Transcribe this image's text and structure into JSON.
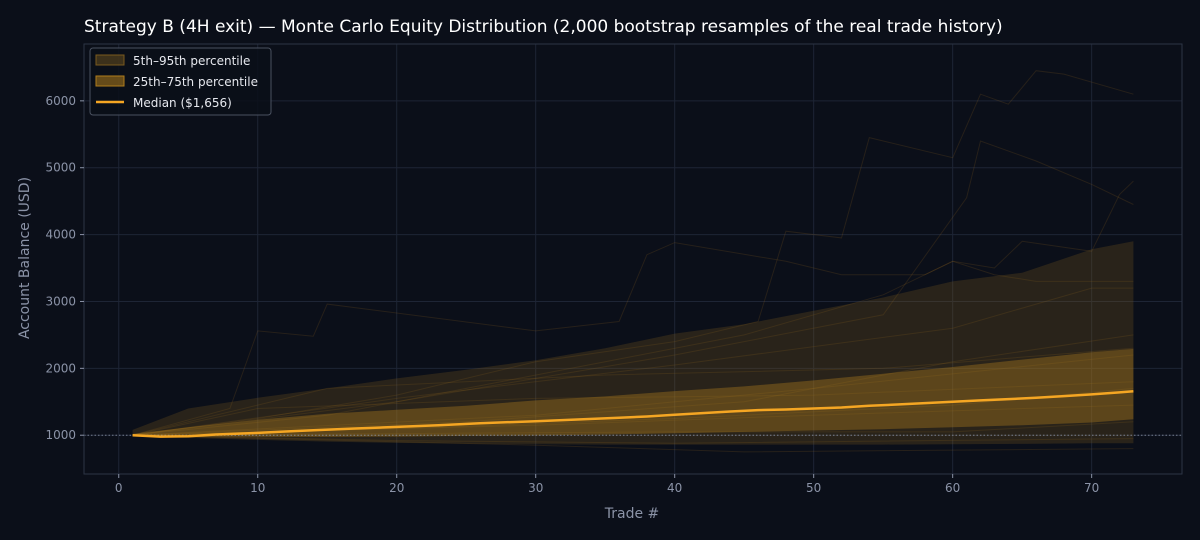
{
  "colors": {
    "background": "#0b0f19",
    "plot_background": "#0b0f19",
    "grid": "#1e2535",
    "spine": "#2c3445",
    "accent": "#f5a623",
    "band_outer": "#7a5a1e",
    "band_inner": "#b07d1c",
    "path": "#a07020",
    "baseline": "#8b93a7"
  },
  "chart_data": {
    "type": "line",
    "title": "Strategy B (4H exit) — Monte Carlo Equity Distribution (2,000 bootstrap resamples of the real trade history)",
    "xlabel": "Trade #",
    "ylabel": "Account Balance (USD)",
    "xlim": [
      -2.5,
      76.5
    ],
    "ylim": [
      420,
      6850
    ],
    "xticks": [
      0,
      10,
      20,
      30,
      40,
      50,
      60,
      70
    ],
    "xtick_labels": [
      "0",
      "10",
      "20",
      "30",
      "40",
      "50",
      "60",
      "70"
    ],
    "yticks": [
      1000,
      2000,
      3000,
      4000,
      5000,
      6000
    ],
    "ytick_labels": [
      "1000",
      "2000",
      "3000",
      "4000",
      "5000",
      "6000"
    ],
    "grid": true,
    "legend_position": "top-left",
    "baseline": 1000,
    "legend": {
      "band_outer": "5th–95th percentile",
      "band_inner": "25th–75th percentile",
      "median": "Median ($1,656)"
    },
    "bands": {
      "p5_95": {
        "x": [
          1,
          5,
          10,
          15,
          20,
          25,
          30,
          35,
          40,
          45,
          50,
          55,
          60,
          65,
          70,
          73
        ],
        "low": [
          985,
          960,
          930,
          905,
          885,
          875,
          865,
          860,
          860,
          860,
          860,
          860,
          865,
          870,
          880,
          880
        ],
        "high": [
          1080,
          1400,
          1560,
          1700,
          1850,
          1980,
          2120,
          2300,
          2520,
          2660,
          2860,
          3060,
          3300,
          3430,
          3780,
          3900
        ]
      },
      "p25_75": {
        "x": [
          1,
          5,
          10,
          15,
          20,
          25,
          30,
          35,
          40,
          45,
          50,
          55,
          60,
          65,
          70,
          73
        ],
        "low": [
          1000,
          975,
          975,
          975,
          980,
          990,
          995,
          1010,
          1030,
          1050,
          1070,
          1090,
          1120,
          1150,
          1190,
          1240
        ],
        "high": [
          1020,
          1120,
          1230,
          1320,
          1380,
          1440,
          1520,
          1580,
          1660,
          1730,
          1820,
          1920,
          2020,
          2130,
          2240,
          2290
        ]
      }
    },
    "series": [
      {
        "name": "Median ($1,656)",
        "x": [
          1,
          3,
          5,
          7,
          10,
          12,
          14,
          17,
          20,
          23,
          26,
          30,
          33,
          36,
          38,
          40,
          42,
          44,
          46,
          48,
          50,
          52,
          54,
          56,
          58,
          60,
          62,
          64,
          66,
          68,
          70,
          72,
          73
        ],
        "values": [
          1000,
          980,
          985,
          1010,
          1035,
          1055,
          1075,
          1100,
          1125,
          1150,
          1180,
          1210,
          1235,
          1260,
          1280,
          1305,
          1330,
          1355,
          1375,
          1385,
          1400,
          1415,
          1440,
          1460,
          1480,
          1500,
          1520,
          1540,
          1560,
          1585,
          1610,
          1640,
          1656
        ]
      }
    ],
    "sample_paths": [
      {
        "x": [
          1,
          8,
          10,
          14,
          15,
          30,
          36,
          38,
          40,
          48,
          52,
          58,
          60,
          63,
          66,
          73
        ],
        "values": [
          1000,
          1400,
          2560,
          2480,
          2960,
          2560,
          2700,
          3700,
          3880,
          3600,
          3400,
          3400,
          3600,
          3400,
          3300,
          3300
        ]
      },
      {
        "x": [
          1,
          10,
          20,
          30,
          40,
          46,
          48,
          52,
          54,
          60,
          62,
          64,
          66,
          68,
          73
        ],
        "values": [
          1000,
          1250,
          1600,
          2100,
          2400,
          2700,
          4050,
          3950,
          5450,
          5150,
          6100,
          5950,
          6450,
          6400,
          6100
        ]
      },
      {
        "x": [
          1,
          15,
          25,
          35,
          45,
          55,
          60,
          63,
          65,
          70,
          72,
          73
        ],
        "values": [
          1000,
          1300,
          1700,
          2100,
          2500,
          3100,
          3600,
          3500,
          3900,
          3750,
          4600,
          4800
        ]
      },
      {
        "x": [
          1,
          20,
          40,
          55,
          61,
          62,
          66,
          70,
          73
        ],
        "values": [
          1000,
          1500,
          2200,
          2800,
          4550,
          5400,
          5100,
          4750,
          4450
        ]
      },
      {
        "x": [
          1,
          20,
          40,
          60,
          70,
          73
        ],
        "values": [
          1000,
          1550,
          2050,
          2600,
          3200,
          3200
        ]
      },
      {
        "x": [
          1,
          25,
          45,
          60,
          73
        ],
        "values": [
          1000,
          1200,
          1500,
          2100,
          2500
        ]
      },
      {
        "x": [
          1,
          30,
          50,
          73
        ],
        "values": [
          1000,
          1300,
          1700,
          2200
        ]
      },
      {
        "x": [
          1,
          20,
          40,
          60,
          73
        ],
        "values": [
          1000,
          1100,
          1250,
          1450,
          1700
        ]
      },
      {
        "x": [
          1,
          30,
          50,
          73
        ],
        "values": [
          1000,
          1150,
          1300,
          1450
        ]
      },
      {
        "x": [
          1,
          20,
          40,
          73
        ],
        "values": [
          1000,
          920,
          880,
          950
        ]
      },
      {
        "x": [
          1,
          30,
          45,
          73
        ],
        "values": [
          1000,
          850,
          750,
          800
        ]
      },
      {
        "x": [
          1,
          40,
          60,
          73
        ],
        "values": [
          1000,
          1050,
          1050,
          1200
        ]
      },
      {
        "x": [
          1,
          15,
          35,
          55,
          73
        ],
        "values": [
          1000,
          1700,
          1900,
          2000,
          2300
        ]
      },
      {
        "x": [
          1,
          10,
          30,
          50,
          73
        ],
        "values": [
          1000,
          1400,
          1550,
          1600,
          1800
        ]
      }
    ]
  }
}
